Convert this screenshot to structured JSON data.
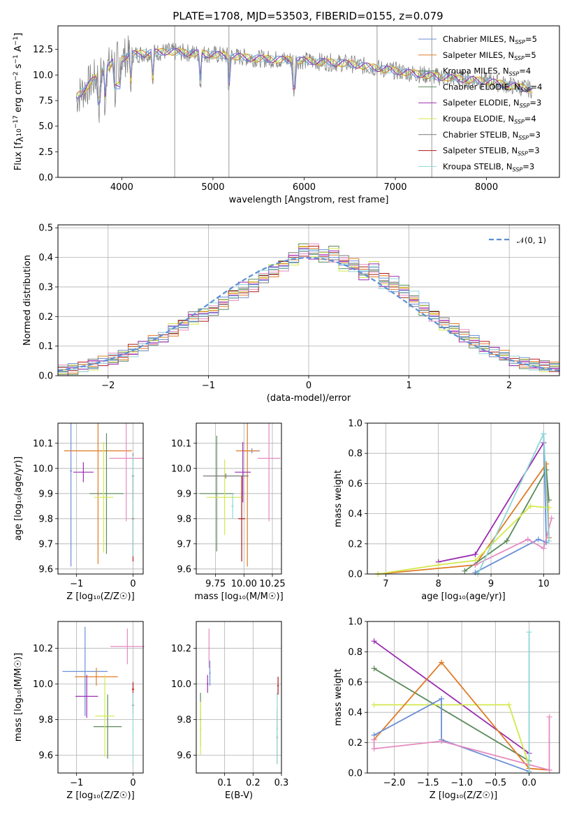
{
  "title": "PLATE=1708, MJD=53503, FIBERID=0155, z=0.079",
  "colors": {
    "blue": "#6b8fd6",
    "orange": "#e07b26",
    "green": "#5b8a5b",
    "purple": "#9a2cb0",
    "yellowgreen": "#d4e84a",
    "pink": "#e58ac0",
    "gray": "#7a7a7a",
    "red": "#b01818",
    "cyan": "#8fd6d6",
    "dashed": "#5b8fd6"
  },
  "legend_spectrum": [
    "Chabrier MILES, N",
    "Salpeter MILES, N",
    "Kroupa MILES, N",
    "Chabrier ELODIE, N",
    "Salpeter ELODIE, N",
    "Kroupa ELODIE, N",
    "Chabrier STELIB, N",
    "Salpeter STELIB, N",
    "Kroupa STELIB, N"
  ],
  "legend_nssp": [
    "5",
    "5",
    "4",
    "4",
    "3",
    "4",
    "3",
    "3",
    "3"
  ],
  "ssp_sub": "SSP",
  "legend_hist": "𝒩(0, 1)",
  "chart_data": [
    {
      "type": "line",
      "id": "spectrum",
      "xlabel": "wavelength [Angstrom, rest frame]",
      "ylabel": "Flux [f",
      "ylabel_sub": "λ",
      "ylabel_rest": "10",
      "ylabel_exp1": "−17",
      "ylabel_mid": " erg cm",
      "ylabel_exp2": "−2",
      "ylabel_s": " s",
      "ylabel_exp3": "−1",
      "ylabel_a": " A",
      "ylabel_exp4": "−1",
      "ylabel_end": "]",
      "xlim": [
        3300,
        8800
      ],
      "ylim": [
        0,
        14.8
      ],
      "xticks": [
        "4000",
        "5000",
        "6000",
        "7000",
        "8000"
      ],
      "yticks": [
        "0.0",
        "2.5",
        "5.0",
        "7.5",
        "10.0",
        "12.5"
      ],
      "xtick_vals": [
        4000,
        5000,
        6000,
        7000,
        8000
      ],
      "ytick_vals": [
        0,
        2.5,
        5,
        7.5,
        10,
        12.5
      ],
      "continuum": [
        [
          3500,
          7.8
        ],
        [
          3700,
          9.6
        ],
        [
          3900,
          11.2
        ],
        [
          4100,
          12.0
        ],
        [
          4500,
          12.3
        ],
        [
          5000,
          12.0
        ],
        [
          5500,
          11.6
        ],
        [
          6000,
          11.4
        ],
        [
          6500,
          11.1
        ],
        [
          7000,
          10.4
        ],
        [
          7500,
          9.8
        ],
        [
          8000,
          9.4
        ],
        [
          8500,
          8.6
        ]
      ]
    },
    {
      "type": "bar",
      "id": "residuals",
      "xlabel": "(data-model)/error",
      "ylabel": "Normed distribution",
      "xlim": [
        -2.5,
        2.5
      ],
      "ylim": [
        0,
        0.51
      ],
      "xticks": [
        "−2",
        "−1",
        "0",
        "1",
        "2"
      ],
      "yticks": [
        "0.0",
        "0.1",
        "0.2",
        "0.3",
        "0.4",
        "0.5"
      ],
      "xtick_vals": [
        -2,
        -1,
        0,
        1,
        2
      ],
      "ytick_vals": [
        0,
        0.1,
        0.2,
        0.3,
        0.4,
        0.5
      ],
      "bin_width": 0.1,
      "series": [
        {
          "values": [
            0.02,
            0.025,
            0.03,
            0.04,
            0.05,
            0.06,
            0.07,
            0.09,
            0.1,
            0.12,
            0.13,
            0.15,
            0.17,
            0.2,
            0.2,
            0.22,
            0.25,
            0.27,
            0.28,
            0.3,
            0.33,
            0.35,
            0.37,
            0.4,
            0.42,
            0.43,
            0.41,
            0.4,
            0.39,
            0.38,
            0.36,
            0.35,
            0.33,
            0.3,
            0.28,
            0.25,
            0.23,
            0.2,
            0.18,
            0.16,
            0.14,
            0.12,
            0.1,
            0.08,
            0.07,
            0.05,
            0.045,
            0.04,
            0.035,
            0.03
          ]
        },
        {
          "values": [
            0.015,
            0.02,
            0.03,
            0.035,
            0.05,
            0.055,
            0.065,
            0.08,
            0.1,
            0.11,
            0.13,
            0.16,
            0.18,
            0.19,
            0.21,
            0.23,
            0.24,
            0.28,
            0.3,
            0.31,
            0.34,
            0.36,
            0.38,
            0.39,
            0.43,
            0.41,
            0.4,
            0.43,
            0.37,
            0.36,
            0.34,
            0.37,
            0.31,
            0.32,
            0.29,
            0.27,
            0.22,
            0.21,
            0.17,
            0.15,
            0.13,
            0.11,
            0.09,
            0.08,
            0.06,
            0.05,
            0.04,
            0.035,
            0.03,
            0.025
          ]
        }
      ],
      "curve": "normal"
    },
    {
      "type": "scatter",
      "id": "age-vs-Z",
      "xlabel": "Z [log₁₀(Z/Z☉)]",
      "ylabel": "age  [log₁₀(age/yr)]",
      "xlim": [
        -1.33,
        0.18
      ],
      "ylim": [
        9.58,
        10.18
      ],
      "xticks": [
        "−1",
        "0"
      ],
      "xtick_vals": [
        -1,
        0
      ],
      "yticks": [
        "9.6",
        "9.7",
        "9.8",
        "9.9",
        "10.0",
        "10.1"
      ],
      "ytick_vals": [
        9.6,
        9.7,
        9.8,
        9.9,
        10.0,
        10.1
      ]
    },
    {
      "type": "scatter",
      "id": "age-vs-mass",
      "xlabel": "mass [log₁₀(M/M☉)]",
      "xlim": [
        9.58,
        10.33
      ],
      "ylim": [
        9.58,
        10.18
      ],
      "xticks": [
        "9.75",
        "10.00",
        "10.25"
      ],
      "xtick_vals": [
        9.75,
        10.0,
        10.25
      ],
      "yticks": [
        "9.6",
        "9.7",
        "9.8",
        "9.9",
        "10.0",
        "10.1"
      ],
      "ytick_vals": [
        9.6,
        9.7,
        9.8,
        9.9,
        10.0,
        10.1
      ]
    },
    {
      "type": "line",
      "id": "weight-vs-age",
      "xlabel": "age  [log₁₀(age/yr)]",
      "ylabel": "mass weight",
      "xlim": [
        6.65,
        10.3
      ],
      "ylim": [
        0,
        1.0
      ],
      "xticks": [
        "7",
        "8",
        "9",
        "10"
      ],
      "xtick_vals": [
        7,
        8,
        9,
        10
      ],
      "yticks": [
        "0.0",
        "0.2",
        "0.4",
        "0.6",
        "0.8",
        "1.0"
      ],
      "ytick_vals": [
        0,
        0.2,
        0.4,
        0.6,
        0.8,
        1.0
      ]
    },
    {
      "type": "scatter",
      "id": "mass-vs-Z",
      "xlabel": "Z [log₁₀(Z/Z☉)]",
      "ylabel": "mass [log₁₀(M/M☉)]",
      "xlim": [
        -1.33,
        0.18
      ],
      "ylim": [
        9.5,
        10.35
      ],
      "xticks": [
        "−1",
        "0"
      ],
      "xtick_vals": [
        -1,
        0
      ],
      "yticks": [
        "9.6",
        "9.8",
        "10.0",
        "10.2"
      ],
      "ytick_vals": [
        9.6,
        9.8,
        10.0,
        10.2
      ]
    },
    {
      "type": "scatter",
      "id": "mass-vs-EBV",
      "xlabel": "E(B-V)",
      "xlim": [
        0.0,
        0.3
      ],
      "ylim": [
        9.5,
        10.35
      ],
      "xticks": [
        "0.1",
        "0.2",
        "0.3"
      ],
      "xtick_vals": [
        0.1,
        0.2,
        0.3
      ],
      "yticks": [
        "9.6",
        "9.8",
        "10.0",
        "10.2"
      ],
      "ytick_vals": [
        9.6,
        9.8,
        10.0,
        10.2
      ]
    },
    {
      "type": "line",
      "id": "weight-vs-Z",
      "xlabel": "Z [log₁₀(Z/Z☉)]",
      "ylabel": "mass weight",
      "xlim": [
        -2.4,
        0.45
      ],
      "ylim": [
        0,
        1.0
      ],
      "xticks": [
        "−2.0",
        "−1.5",
        "−1.0",
        "−0.5",
        "0.0"
      ],
      "xtick_vals": [
        -2.0,
        -1.5,
        -1.0,
        -0.5,
        0.0
      ],
      "yticks": [
        "0.0",
        "0.2",
        "0.4",
        "0.6",
        "0.8",
        "1.0"
      ],
      "ytick_vals": [
        0,
        0.2,
        0.4,
        0.6,
        0.8,
        1.0
      ]
    }
  ],
  "crosses_ageZ": [
    {
      "c": "blue",
      "x": -1.1,
      "y": 9.99,
      "xe": 0.02,
      "ye": 0.38
    },
    {
      "c": "orange",
      "x": -0.62,
      "y": 10.07,
      "xe": 0.6,
      "ye": 0.45
    },
    {
      "c": "purple",
      "x": -0.88,
      "y": 9.985,
      "xe": 0.18,
      "ye": 0.04
    },
    {
      "c": "green",
      "x": -0.47,
      "y": 9.9,
      "xe": 0.3,
      "ye": 0.24
    },
    {
      "c": "yellowgreen",
      "x": -0.52,
      "y": 9.885,
      "xe": 0.17,
      "ye": 0.22
    },
    {
      "c": "pink",
      "x": -0.12,
      "y": 10.04,
      "xe": 0.3,
      "ye": 0.25
    },
    {
      "c": "gray",
      "x": 0.0,
      "y": 9.97,
      "xe": 0.02,
      "ye": 0.09
    },
    {
      "c": "red",
      "x": 0.0,
      "y": 9.8,
      "xe": 0.02,
      "ye": 0.17
    },
    {
      "c": "cyan",
      "x": 0.0,
      "y": 9.85,
      "xe": 0.01,
      "ye": 0.2
    }
  ],
  "crosses_ageM": [
    {
      "c": "blue",
      "x": 10.07,
      "y": 10.07,
      "xe": 0.07,
      "ye": 0.01
    },
    {
      "c": "orange",
      "x": 10.03,
      "y": 10.07,
      "xe": 0.1,
      "ye": 0.46
    },
    {
      "c": "purple",
      "x": 9.99,
      "y": 9.985,
      "xe": 0.07,
      "ye": 0.12
    },
    {
      "c": "green",
      "x": 9.76,
      "y": 9.9,
      "xe": 0.15,
      "ye": 0.23
    },
    {
      "c": "yellowgreen",
      "x": 9.83,
      "y": 9.885,
      "xe": 0.16,
      "ye": 0.15
    },
    {
      "c": "pink",
      "x": 10.22,
      "y": 10.04,
      "xe": 0.1,
      "ye": 0.25
    },
    {
      "c": "gray",
      "x": 9.84,
      "y": 9.97,
      "xe": 0.2,
      "ye": 0.01
    },
    {
      "c": "red",
      "x": 9.98,
      "y": 9.8,
      "xe": 0.03,
      "ye": 0.17
    },
    {
      "c": "cyan",
      "x": 9.9,
      "y": 9.85,
      "xe": 0.01,
      "ye": 0.05
    }
  ],
  "crosses_mZ": [
    {
      "c": "blue",
      "x": -0.85,
      "y": 10.07,
      "xe": 0.4,
      "ye": 0.25
    },
    {
      "c": "orange",
      "x": -0.65,
      "y": 10.04,
      "xe": 0.38,
      "ye": 0.05
    },
    {
      "c": "purple",
      "x": -0.82,
      "y": 9.93,
      "xe": 0.2,
      "ye": 0.12
    },
    {
      "c": "green",
      "x": -0.45,
      "y": 9.76,
      "xe": 0.25,
      "ye": 0.18
    },
    {
      "c": "yellowgreen",
      "x": -0.5,
      "y": 9.82,
      "xe": 0.17,
      "ye": 0.23
    },
    {
      "c": "pink",
      "x": -0.1,
      "y": 10.21,
      "xe": 0.3,
      "ye": 0.1
    },
    {
      "c": "gray",
      "x": 0.0,
      "y": 9.88,
      "xe": 0.02,
      "ye": 0.05
    },
    {
      "c": "red",
      "x": 0.0,
      "y": 9.97,
      "xe": 0.02,
      "ye": 0.04
    },
    {
      "c": "cyan",
      "x": 0.0,
      "y": 9.75,
      "xe": 0.01,
      "ye": 0.2
    }
  ],
  "crosses_mE": [
    {
      "c": "pink",
      "x": 0.045,
      "y": 10.2,
      "xe": 0.003,
      "ye": 0.11
    },
    {
      "c": "purple",
      "x": 0.04,
      "y": 10.0,
      "xe": 0.003,
      "ye": 0.05
    },
    {
      "c": "blue",
      "x": 0.048,
      "y": 10.06,
      "xe": 0.003,
      "ye": 0.07
    },
    {
      "c": "green",
      "x": 0.015,
      "y": 9.8,
      "xe": 0.003,
      "ye": 0.15
    },
    {
      "c": "yellowgreen",
      "x": 0.015,
      "y": 9.75,
      "xe": 0.003,
      "ye": 0.15
    },
    {
      "c": "red",
      "x": 0.288,
      "y": 9.99,
      "xe": 0.003,
      "ye": 0.05
    },
    {
      "c": "gray",
      "x": 0.285,
      "y": 9.7,
      "xe": 0.003,
      "ye": 0.15
    },
    {
      "c": "cyan",
      "x": 0.285,
      "y": 9.75,
      "xe": 0.003,
      "ye": 0.2
    }
  ],
  "weights_age": [
    {
      "c": "blue",
      "pts": [
        [
          8.7,
          0.01
        ],
        [
          9.9,
          0.23
        ],
        [
          10.05,
          0.21
        ],
        [
          10.0,
          0.93
        ]
      ]
    },
    {
      "c": "orange",
      "pts": [
        [
          6.85,
          0.0
        ],
        [
          8.7,
          0.06
        ],
        [
          10.05,
          0.73
        ],
        [
          10.1,
          0.24
        ]
      ]
    },
    {
      "c": "green",
      "pts": [
        [
          8.5,
          0.02
        ],
        [
          9.3,
          0.22
        ],
        [
          10.05,
          0.69
        ],
        [
          10.1,
          0.49
        ]
      ]
    },
    {
      "c": "purple",
      "pts": [
        [
          8.0,
          0.08
        ],
        [
          8.7,
          0.13
        ],
        [
          10.0,
          0.87
        ]
      ]
    },
    {
      "c": "yellowgreen",
      "pts": [
        [
          6.85,
          0.0
        ],
        [
          8.0,
          0.06
        ],
        [
          8.7,
          0.09
        ],
        [
          9.75,
          0.45
        ],
        [
          10.1,
          0.44
        ]
      ]
    },
    {
      "c": "pink",
      "pts": [
        [
          8.7,
          0.06
        ],
        [
          9.7,
          0.23
        ],
        [
          10.0,
          0.17
        ],
        [
          10.15,
          0.37
        ]
      ]
    },
    {
      "c": "cyan",
      "pts": [
        [
          8.75,
          0.0
        ],
        [
          10.0,
          0.93
        ],
        [
          10.1,
          0.22
        ]
      ]
    }
  ],
  "weights_Z": [
    {
      "c": "purple",
      "pts": [
        [
          -2.3,
          0.87
        ],
        [
          0.0,
          0.13
        ]
      ]
    },
    {
      "c": "green",
      "pts": [
        [
          -2.3,
          0.69
        ],
        [
          0.0,
          0.08
        ]
      ]
    },
    {
      "c": "yellowgreen",
      "pts": [
        [
          -2.3,
          0.45
        ],
        [
          -0.3,
          0.45
        ],
        [
          0.0,
          0.05
        ]
      ]
    },
    {
      "c": "orange",
      "pts": [
        [
          -2.3,
          0.22
        ],
        [
          -1.3,
          0.73
        ],
        [
          0.0,
          0.03
        ],
        [
          0.3,
          0.02
        ]
      ]
    },
    {
      "c": "blue",
      "pts": [
        [
          -2.3,
          0.25
        ],
        [
          -1.3,
          0.49
        ],
        [
          -1.3,
          0.22
        ],
        [
          0.0,
          0.01
        ]
      ]
    },
    {
      "c": "pink",
      "pts": [
        [
          -2.3,
          0.22
        ],
        [
          -2.3,
          0.16
        ],
        [
          -1.3,
          0.21
        ],
        [
          0.3,
          0.02
        ],
        [
          0.3,
          0.37
        ]
      ]
    },
    {
      "c": "cyan",
      "pts": [
        [
          0.0,
          0.0
        ],
        [
          0.0,
          0.93
        ]
      ]
    }
  ]
}
